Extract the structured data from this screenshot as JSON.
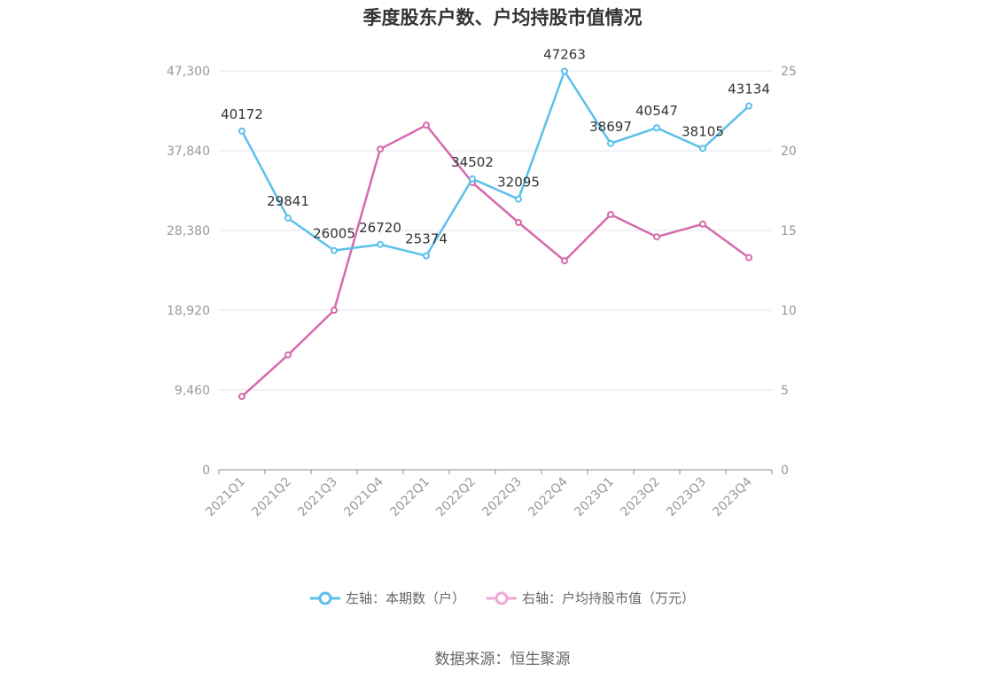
{
  "chart_data": {
    "type": "line",
    "title": "季度股东户数、户均持股市值情况",
    "categories": [
      "2021Q1",
      "2021Q2",
      "2021Q3",
      "2021Q4",
      "2022Q1",
      "2022Q2",
      "2022Q3",
      "2022Q4",
      "2023Q1",
      "2023Q2",
      "2023Q3",
      "2023Q4"
    ],
    "series": [
      {
        "name": "左轴：本期数（户）",
        "axis": "left",
        "color": "#5bc0eb",
        "values": [
          40172,
          29841,
          26005,
          26720,
          25374,
          34502,
          32095,
          47263,
          38697,
          40547,
          38105,
          43134
        ],
        "labels": [
          "40172",
          "29841",
          "26005",
          "26720",
          "25374",
          "34502",
          "32095",
          "47263",
          "38697",
          "40547",
          "38105",
          "43134"
        ]
      },
      {
        "name": "右轴：户均持股市值（万元）",
        "axis": "right",
        "color": "#d56aac",
        "values": [
          4.6,
          7.2,
          10.0,
          20.1,
          21.6,
          18.0,
          15.5,
          13.1,
          16.0,
          14.6,
          15.4,
          13.3
        ]
      }
    ],
    "y_left": {
      "min": 0,
      "max": 47300,
      "ticks": [
        "0",
        "9,460",
        "18,920",
        "28,380",
        "37,840",
        "47,300"
      ]
    },
    "y_right": {
      "min": 0,
      "max": 25,
      "ticks": [
        "0",
        "5",
        "10",
        "15",
        "20",
        "25"
      ]
    },
    "grid": true,
    "legend_position": "bottom"
  },
  "source": "数据来源：恒生聚源"
}
